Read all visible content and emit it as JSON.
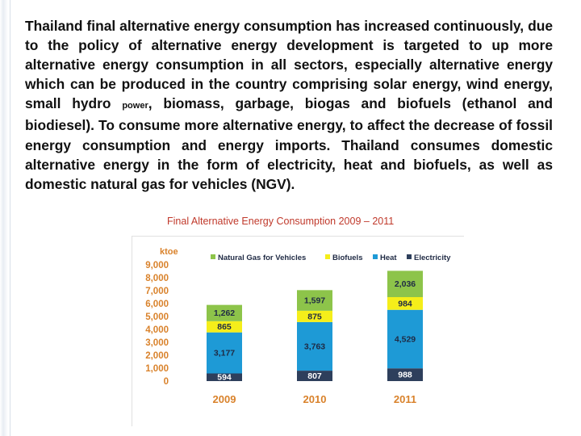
{
  "paragraph": {
    "before_small": "Thailand final alternative energy consumption has increased continuously, due to the policy of alternative energy development is targeted to up more alternative energy consumption in all sectors, especially alternative energy which can be produced in the country comprising solar energy, wind energy, small hydro ",
    "small": "power",
    "after_small": ", biomass, garbage, biogas and biofuels (ethanol and biodiesel). To consume more alternative energy, to affect the decrease of fossil energy consumption and energy imports. Thailand consumes domestic alternative energy in the form of electricity, heat and biofuels, as well as domestic natural gas for vehicles (NGV)."
  },
  "colors": {
    "title": "#c0392b",
    "axis_text": "#d9822b",
    "unit_text": "#d9822b"
  },
  "chart_data": {
    "type": "bar",
    "stacked": true,
    "title": "Final  Alternative Energy  Consumption 2009 – 2011",
    "unit_label": "ktoe",
    "categories": [
      "2009",
      "2010",
      "2011"
    ],
    "ylim": [
      0,
      9000
    ],
    "yticks": [
      "0",
      "1,000",
      "2,000",
      "3,000",
      "4,000",
      "5,000",
      "6,000",
      "7,000",
      "8,000",
      "9,000"
    ],
    "legend_position": "top",
    "series": [
      {
        "name": "Electricity",
        "color": "#2e3f5c",
        "label_color": "#ffffff",
        "values": [
          594,
          807,
          988
        ],
        "labels": [
          "594",
          "807",
          "988"
        ]
      },
      {
        "name": "Heat",
        "color": "#1e9ad6",
        "label_color": "#1f2a44",
        "values": [
          3177,
          3763,
          4529
        ],
        "labels": [
          "3,177",
          "3,763",
          "4,529"
        ]
      },
      {
        "name": "Biofuels",
        "color": "#f5ee1a",
        "label_color": "#1f2a44",
        "values": [
          865,
          875,
          984
        ],
        "labels": [
          "865",
          "875",
          "984"
        ]
      },
      {
        "name": "Natural Gas for Vehicles",
        "color": "#8dc44a",
        "label_color": "#1f2a44",
        "values": [
          1262,
          1597,
          2036
        ],
        "labels": [
          "1,262",
          "1,597",
          "2,036"
        ]
      }
    ],
    "legend_order": [
      "Natural Gas for Vehicles",
      "Biofuels",
      "Heat",
      "Electricity"
    ]
  }
}
